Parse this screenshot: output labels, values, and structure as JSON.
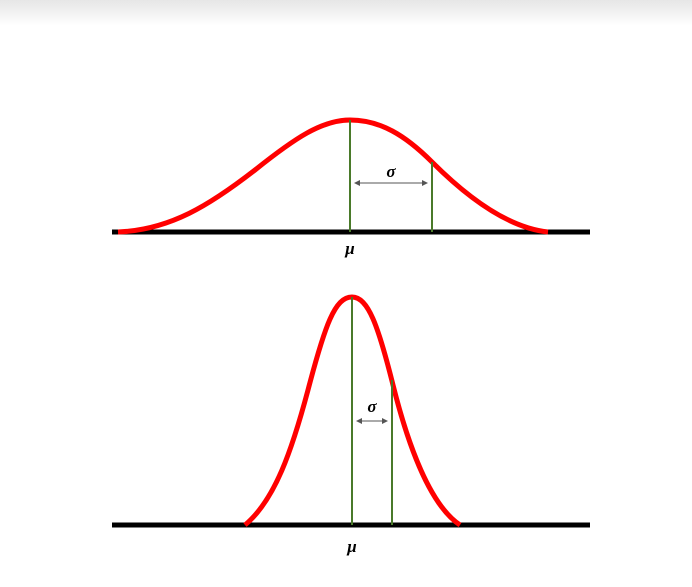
{
  "diagram": {
    "colors": {
      "curve": "#ff0000",
      "marker": "#4a7a2a",
      "axis": "#000000",
      "arrow": "#555555"
    },
    "panels": [
      {
        "mean_label": "μ",
        "sd_label": "σ",
        "spread": "wide"
      },
      {
        "mean_label": "μ",
        "sd_label": "σ",
        "spread": "narrow"
      }
    ]
  }
}
